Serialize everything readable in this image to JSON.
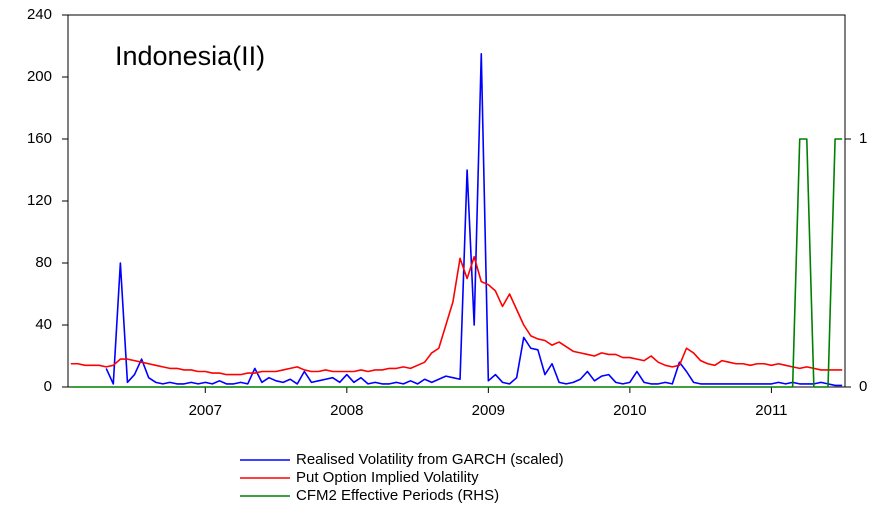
{
  "chart_data": {
    "type": "line",
    "title": "Indonesia(II)",
    "x": [
      2006.05,
      2006.1,
      2006.15,
      2006.2,
      2006.25,
      2006.3,
      2006.35,
      2006.4,
      2006.45,
      2006.5,
      2006.55,
      2006.6,
      2006.65,
      2006.7,
      2006.75,
      2006.8,
      2006.85,
      2006.9,
      2006.95,
      2007.0,
      2007.05,
      2007.1,
      2007.15,
      2007.2,
      2007.25,
      2007.3,
      2007.35,
      2007.4,
      2007.45,
      2007.5,
      2007.55,
      2007.6,
      2007.65,
      2007.7,
      2007.75,
      2007.8,
      2007.85,
      2007.9,
      2007.95,
      2008.0,
      2008.05,
      2008.1,
      2008.15,
      2008.2,
      2008.25,
      2008.3,
      2008.35,
      2008.4,
      2008.45,
      2008.5,
      2008.55,
      2008.6,
      2008.65,
      2008.7,
      2008.75,
      2008.8,
      2008.85,
      2008.9,
      2008.95,
      2009.0,
      2009.05,
      2009.1,
      2009.15,
      2009.2,
      2009.25,
      2009.3,
      2009.35,
      2009.4,
      2009.45,
      2009.5,
      2009.55,
      2009.6,
      2009.65,
      2009.7,
      2009.75,
      2009.8,
      2009.85,
      2009.9,
      2009.95,
      2010.0,
      2010.05,
      2010.1,
      2010.15,
      2010.2,
      2010.25,
      2010.3,
      2010.35,
      2010.4,
      2010.45,
      2010.5,
      2010.55,
      2010.6,
      2010.65,
      2010.7,
      2010.75,
      2010.8,
      2010.85,
      2010.9,
      2010.95,
      2011.0,
      2011.05,
      2011.1,
      2011.15,
      2011.2,
      2011.25,
      2011.3,
      2011.35,
      2011.4,
      2011.45,
      2011.5
    ],
    "series": [
      {
        "name": "Realised Volatility from GARCH (scaled)",
        "color": "#0000ff",
        "values": [
          null,
          null,
          null,
          null,
          null,
          12,
          2,
          80,
          3,
          8,
          18,
          6,
          3,
          2,
          3,
          2,
          2,
          3,
          2,
          3,
          2,
          4,
          2,
          2,
          3,
          2,
          12,
          3,
          6,
          4,
          3,
          5,
          2,
          10,
          3,
          4,
          5,
          6,
          3,
          8,
          3,
          6,
          2,
          3,
          2,
          2,
          3,
          2,
          4,
          2,
          5,
          3,
          5,
          7,
          6,
          5,
          140,
          40,
          215,
          4,
          8,
          3,
          2,
          6,
          32,
          25,
          24,
          8,
          15,
          3,
          2,
          3,
          5,
          10,
          4,
          7,
          8,
          3,
          2,
          3,
          10,
          3,
          2,
          2,
          3,
          2,
          16,
          10,
          3,
          2,
          2,
          2,
          2,
          2,
          2,
          2,
          2,
          2,
          2,
          2,
          3,
          2,
          3,
          2,
          2,
          2,
          3,
          2,
          1,
          1
        ]
      },
      {
        "name": "Put Option Implied Volatility",
        "color": "#ff0000",
        "values": [
          15,
          15,
          14,
          14,
          14,
          13,
          14,
          18,
          18,
          17,
          16,
          15,
          14,
          13,
          12,
          12,
          11,
          11,
          10,
          10,
          9,
          9,
          8,
          8,
          8,
          9,
          9,
          10,
          10,
          10,
          11,
          12,
          13,
          11,
          10,
          10,
          11,
          10,
          10,
          10,
          10,
          11,
          10,
          11,
          11,
          12,
          12,
          13,
          12,
          14,
          16,
          22,
          25,
          40,
          55,
          83,
          70,
          84,
          68,
          66,
          62,
          52,
          60,
          50,
          40,
          33,
          31,
          30,
          27,
          29,
          26,
          23,
          22,
          21,
          20,
          22,
          21,
          21,
          19,
          19,
          18,
          17,
          20,
          16,
          14,
          13,
          14,
          25,
          22,
          17,
          15,
          14,
          17,
          16,
          15,
          15,
          14,
          15,
          15,
          14,
          15,
          14,
          13,
          12,
          13,
          12,
          11,
          11,
          11,
          11
        ]
      },
      {
        "name": "CFM2 Effective Periods (RHS)",
        "color": "#008000",
        "axis": "y2",
        "values": [
          0,
          0,
          0,
          0,
          0,
          0,
          0,
          0,
          0,
          0,
          0,
          0,
          0,
          0,
          0,
          0,
          0,
          0,
          0,
          0,
          0,
          0,
          0,
          0,
          0,
          0,
          0,
          0,
          0,
          0,
          0,
          0,
          0,
          0,
          0,
          0,
          0,
          0,
          0,
          0,
          0,
          0,
          0,
          0,
          0,
          0,
          0,
          0,
          0,
          0,
          0,
          0,
          0,
          0,
          0,
          0,
          0,
          0,
          0,
          0,
          0,
          0,
          0,
          0,
          0,
          0,
          0,
          0,
          0,
          0,
          0,
          0,
          0,
          0,
          0,
          0,
          0,
          0,
          0,
          0,
          0,
          0,
          0,
          0,
          0,
          0,
          0,
          0,
          0,
          0,
          0,
          0,
          0,
          0,
          0,
          0,
          0,
          0,
          0,
          0,
          0,
          0,
          0,
          1,
          1,
          0,
          0,
          0,
          1,
          1
        ]
      }
    ],
    "xlim": [
      2006.03,
      2011.52
    ],
    "xticks": [
      2007,
      2008,
      2009,
      2010,
      2011
    ],
    "ylim": [
      0,
      240
    ],
    "yticks": [
      0,
      40,
      80,
      120,
      160,
      200,
      240
    ],
    "y2lim": [
      0,
      1.5
    ],
    "y2ticks": [
      0,
      1
    ],
    "grid": false
  }
}
